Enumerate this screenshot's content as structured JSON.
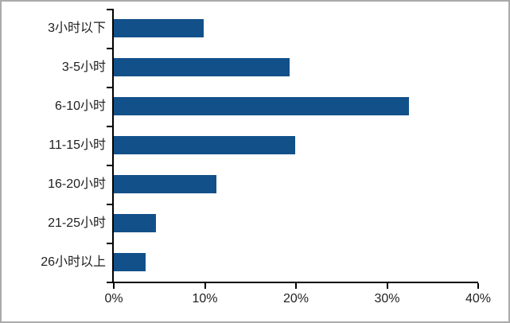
{
  "chart_data": {
    "type": "bar",
    "orientation": "horizontal",
    "title": "",
    "categories": [
      "3小时以下",
      "3-5小时",
      "6-10小时",
      "11-15小时",
      "16-20小时",
      "21-25小时",
      "26小时以上"
    ],
    "values": [
      9.9,
      19.3,
      32.4,
      19.9,
      11.3,
      4.6,
      3.5
    ],
    "xlim": [
      0,
      40
    ],
    "x_ticks": [
      0,
      10,
      20,
      30,
      40
    ],
    "x_tick_labels": [
      "0%",
      "10%",
      "20%",
      "30%",
      "40%"
    ],
    "grid": false,
    "legend": null,
    "bar_color": "#12508a",
    "axis_color": "#000000",
    "text_color": "#1f1f1f"
  }
}
